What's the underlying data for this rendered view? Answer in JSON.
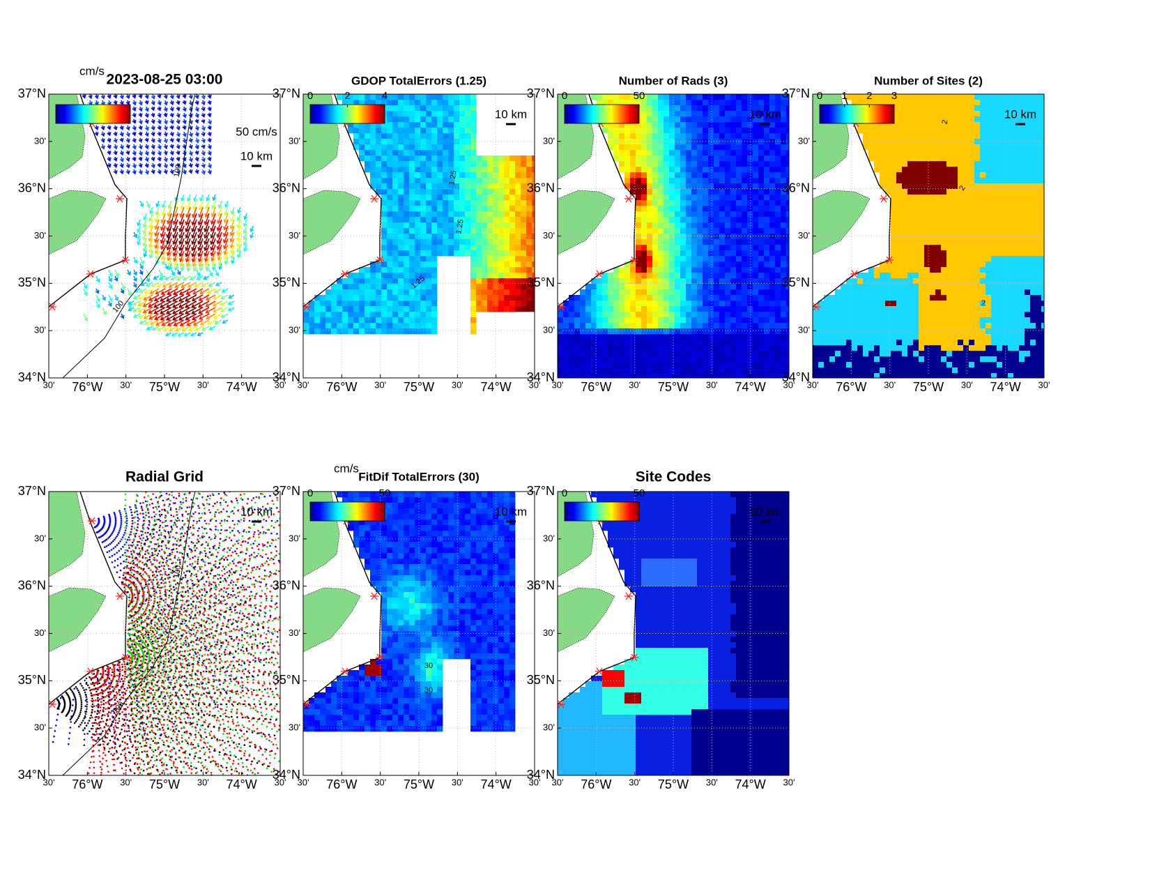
{
  "axes": {
    "xlim": [
      -76.5,
      -73.5
    ],
    "ylim": [
      34,
      37
    ],
    "grid": true,
    "lat_ticks": [
      {
        "value": 37,
        "label": "37°N"
      },
      {
        "value": 36.5,
        "label": "30'"
      },
      {
        "value": 36,
        "label": "36°N"
      },
      {
        "value": 35.5,
        "label": "30'"
      },
      {
        "value": 35,
        "label": "35°N"
      },
      {
        "value": 34.5,
        "label": "30'"
      },
      {
        "value": 34,
        "label": "34°N"
      }
    ],
    "lon_ticks": [
      {
        "value": -76.5,
        "label": "30'"
      },
      {
        "value": -76,
        "label": "76°W"
      },
      {
        "value": -75.5,
        "label": "30'"
      },
      {
        "value": -75,
        "label": "75°W"
      },
      {
        "value": -74.5,
        "label": "30'"
      },
      {
        "value": -74,
        "label": "74°W"
      },
      {
        "value": -73.5,
        "label": "30'"
      }
    ]
  },
  "panels": [
    {
      "title": "2023-08-25 03:00",
      "colorbar_unit": "cm/s",
      "vector_scale_label": "50 cm/s",
      "scale_label": "10 km",
      "contour_labels": [
        "100",
        "100"
      ]
    },
    {
      "title": "GDOP TotalErrors (1.25)",
      "colorbar_ticks": [
        0,
        2,
        4
      ],
      "clim": [
        0,
        4
      ],
      "scale_label": "10 km",
      "contour_labels": [
        "1.25",
        "1.25",
        "1.25"
      ]
    },
    {
      "title": "Number of Rads (3)",
      "colorbar_ticks": [
        0,
        50
      ],
      "clim": [
        0,
        50
      ],
      "scale_label": "10 km"
    },
    {
      "title": "Number of Sites (2)",
      "colorbar_ticks": [
        0,
        1,
        2,
        3
      ],
      "clim": [
        0,
        3
      ],
      "scale_label": "10 km",
      "contour_labels": [
        "2",
        "2",
        "2"
      ]
    },
    {
      "title": "Radial Grid",
      "scale_label": "10 km",
      "contour_labels": [
        "100",
        "100"
      ]
    },
    {
      "title": "FitDif TotalErrors (30)",
      "colorbar_unit": "cm/s",
      "colorbar_ticks": [
        0,
        50
      ],
      "clim": [
        0,
        50
      ],
      "scale_label": "10 km",
      "contour_labels": [
        "30",
        "30"
      ]
    },
    {
      "title": "Site Codes",
      "colorbar_ticks": [
        0,
        50
      ],
      "clim": [
        0,
        50
      ],
      "scale_label": "10 km"
    }
  ]
}
